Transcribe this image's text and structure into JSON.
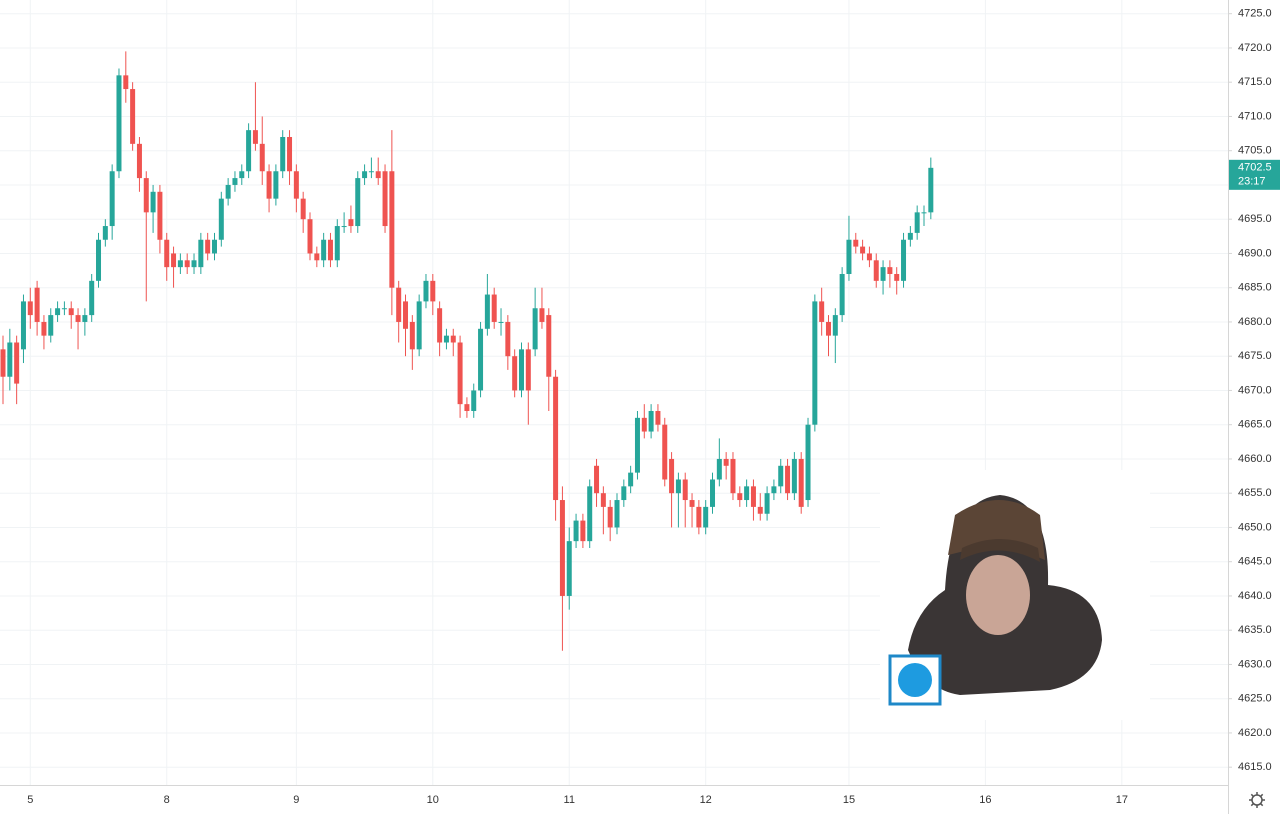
{
  "chart_data": {
    "type": "candlestick",
    "up_color": "#26a69a",
    "down_color": "#ef5350",
    "grid": true,
    "countdown": "23:17",
    "categories": [
      null,
      null,
      null,
      null,
      "5",
      null,
      null,
      null,
      null,
      null,
      null,
      null,
      null,
      null,
      null,
      null,
      null,
      null,
      null,
      null,
      null,
      null,
      null,
      null,
      "8",
      null,
      null,
      null,
      null,
      null,
      null,
      null,
      null,
      null,
      null,
      null,
      null,
      null,
      null,
      null,
      null,
      null,
      null,
      "9",
      null,
      null,
      null,
      null,
      null,
      null,
      null,
      null,
      null,
      null,
      null,
      null,
      null,
      null,
      null,
      null,
      null,
      null,
      null,
      "10",
      null,
      null,
      null,
      null,
      null,
      null,
      null,
      null,
      null,
      null,
      null,
      null,
      null,
      null,
      null,
      null,
      null,
      null,
      null,
      "11",
      null,
      null,
      null,
      null,
      null,
      null,
      null,
      null,
      null,
      null,
      null,
      null,
      null,
      null,
      null,
      null,
      null,
      null,
      null,
      "12",
      null,
      null,
      null,
      null,
      null,
      null,
      null,
      null,
      null,
      null,
      null,
      null,
      null,
      null,
      null,
      null,
      null,
      null,
      null,
      null,
      "15",
      null,
      null,
      null,
      null,
      null,
      null,
      null,
      null,
      null,
      null,
      null,
      null,
      null,
      null,
      null,
      null,
      null,
      null,
      null,
      "16",
      null,
      null,
      null,
      null,
      null,
      null,
      null,
      null,
      null,
      null,
      null,
      null,
      null,
      null,
      null,
      null,
      null,
      null,
      null,
      "17",
      null,
      null,
      null,
      null,
      null,
      null,
      null,
      null,
      null,
      null,
      null,
      null,
      null,
      null,
      null
    ],
    "open": [
      4676,
      4672,
      4677,
      4676,
      4683,
      4685,
      4680,
      4678,
      4681,
      4682,
      4682,
      4681,
      4680,
      4681,
      4686,
      4692,
      4694,
      4702,
      4716,
      4714,
      4706,
      4701,
      4696,
      4699,
      4692,
      4690,
      4688,
      4689,
      4688,
      4688,
      4692,
      4690,
      4692,
      4698,
      4700,
      4701,
      4702,
      4708,
      4706,
      4702,
      4698,
      4702,
      4707,
      4702,
      4698,
      4695,
      4690,
      4689,
      4692,
      4689,
      4694,
      4695,
      4694,
      4701,
      4702,
      4702,
      4702,
      4702,
      4685,
      4683,
      4680,
      4676,
      4683,
      4686,
      4682,
      4677,
      4678,
      4677,
      4668,
      4667,
      4670,
      4679,
      4684,
      4680,
      4680,
      4675,
      4670,
      4676,
      4676,
      4682,
      4681,
      4672,
      4654,
      4640,
      4648,
      4651,
      4648,
      4659,
      4655,
      4653,
      4650,
      4654,
      4656,
      4658,
      4666,
      4664,
      4667,
      4665,
      4660,
      4655,
      4657,
      4654,
      4653,
      4650,
      4653,
      4657,
      4660,
      4660,
      4655,
      4654,
      4656,
      4653,
      4652,
      4655,
      4656,
      4659,
      4655,
      4660,
      4654,
      4665,
      4683,
      4680,
      4678,
      4681,
      4687,
      4692,
      4691,
      4690,
      4689,
      4686,
      4688,
      4687,
      4686,
      4692,
      4693,
      4696,
      4696,
      null,
      null,
      null,
      null,
      null,
      null,
      null,
      null,
      null,
      null,
      null,
      null,
      null,
      null,
      null,
      null,
      null,
      null,
      null,
      null,
      null,
      null,
      null,
      null,
      null,
      null,
      null,
      null,
      null,
      null,
      null,
      null,
      null,
      null,
      null,
      null,
      null,
      null,
      null,
      null,
      null,
      null,
      null
    ],
    "high": [
      4678,
      4679,
      4678,
      4684,
      4685,
      4686,
      4681,
      4682,
      4683,
      4683,
      4683,
      4682,
      4682,
      4687,
      4693,
      4695,
      4703,
      4717,
      4719.5,
      4715,
      4707,
      4702,
      4700,
      4700,
      4693,
      4691,
      4690,
      4690,
      4690,
      4693,
      4693,
      4693,
      4699,
      4701,
      4702,
      4703,
      4709,
      4715,
      4710,
      4703,
      4703,
      4708,
      4708,
      4703,
      4699,
      4696,
      4691,
      4693,
      4693,
      4695,
      4696,
      4697,
      4702,
      4703,
      4704,
      4704,
      4703,
      4708,
      4686,
      4684,
      4681,
      4684,
      4687,
      4687,
      4683,
      4679,
      4679,
      4678,
      4669,
      4671,
      4680,
      4687,
      4685,
      4682,
      4681,
      4676,
      4677,
      4677,
      4685,
      4685,
      4682,
      4673,
      4656,
      4650,
      4652,
      4652,
      4657,
      4660,
      4656,
      4654,
      4655,
      4657,
      4659,
      4667,
      4668,
      4668,
      4668,
      4666,
      4661,
      4658,
      4658,
      4655,
      4654,
      4654,
      4658,
      4663,
      4661,
      4661,
      4656,
      4657,
      4657,
      4655,
      4656,
      4657,
      4660,
      4660,
      4661,
      4661,
      4666,
      4684,
      4685,
      4681,
      4682,
      4688,
      4695.5,
      4693,
      4692,
      4691,
      4690,
      4689,
      4689,
      4688,
      4693,
      4694,
      4697,
      4697,
      4704,
      null,
      null,
      null,
      null,
      null,
      null,
      null,
      null,
      null,
      null,
      null,
      null,
      null,
      null,
      null,
      null,
      null,
      null,
      null,
      null,
      null,
      null,
      null,
      null,
      null,
      null,
      null,
      null,
      null,
      null,
      null,
      null,
      null,
      null,
      null,
      null,
      null,
      null,
      null,
      null,
      null,
      null,
      null
    ],
    "low": [
      4668,
      4670,
      4668,
      4674,
      4679,
      4678,
      4676,
      4677,
      4680,
      4681,
      4679,
      4676,
      4678,
      4680,
      4685,
      4691,
      4692,
      4701,
      4712,
      4705,
      4699,
      4683,
      4693,
      4690,
      4686,
      4685,
      4687,
      4687,
      4687,
      4687,
      4689,
      4689,
      4691,
      4697,
      4699,
      4700,
      4701,
      4705,
      4700,
      4696,
      4697,
      4701,
      4700,
      4696,
      4693,
      4689,
      4688,
      4688,
      4688,
      4688,
      4693,
      4693,
      4693,
      4700,
      4701,
      4700,
      4693,
      4681,
      4677,
      4675,
      4673,
      4675,
      4682,
      4681,
      4675,
      4676,
      4675,
      4666,
      4666,
      4666,
      4669,
      4678,
      4679,
      4678,
      4673,
      4669,
      4669,
      4665,
      4675,
      4679,
      4667,
      4651,
      4632,
      4638,
      4647,
      4647,
      4647,
      4653,
      4649,
      4648,
      4649,
      4653,
      4655,
      4657,
      4663,
      4663,
      4664,
      4656,
      4650,
      4650,
      4650,
      4650,
      4649,
      4649,
      4652,
      4656,
      4657,
      4654,
      4653,
      4653,
      4651,
      4651,
      4651,
      4654,
      4655,
      4654,
      4654,
      4652,
      4653,
      4664,
      4678,
      4675,
      4674,
      4680,
      4686,
      4690,
      4689,
      4688,
      4685,
      4684,
      4685,
      4684,
      4685,
      4691,
      4692,
      4694,
      4695,
      null,
      null,
      null,
      null,
      null,
      null,
      null,
      null,
      null,
      null,
      null,
      null,
      null,
      null,
      null,
      null,
      null,
      null,
      null,
      null,
      null,
      null,
      null,
      null,
      null,
      null,
      null,
      null,
      null,
      null,
      null,
      null,
      null,
      null,
      null,
      null,
      null,
      null,
      null,
      null,
      null,
      null,
      null
    ],
    "close": [
      4672,
      4677,
      4671,
      4683,
      4681,
      4680,
      4678,
      4681,
      4682,
      4682,
      4681,
      4680,
      4681,
      4686,
      4692,
      4694,
      4702,
      4716,
      4714,
      4706,
      4701,
      4696,
      4699,
      4692,
      4688,
      4688,
      4689,
      4688,
      4689,
      4692,
      4690,
      4692,
      4698,
      4700,
      4701,
      4702,
      4708,
      4706,
      4702,
      4698,
      4702,
      4707,
      4702,
      4698,
      4695,
      4690,
      4689,
      4692,
      4689,
      4694,
      4694,
      4694,
      4701,
      4702,
      4702,
      4701,
      4694,
      4685,
      4680,
      4679,
      4676,
      4683,
      4686,
      4683,
      4677,
      4678,
      4677,
      4668,
      4667,
      4670,
      4679,
      4684,
      4680,
      4680,
      4675,
      4670,
      4676,
      4670,
      4682,
      4680,
      4672,
      4654,
      4640,
      4648,
      4651,
      4648,
      4656,
      4655,
      4653,
      4650,
      4654,
      4656,
      4658,
      4666,
      4664,
      4667,
      4665,
      4657,
      4655,
      4657,
      4654,
      4653,
      4650,
      4653,
      4657,
      4660,
      4659,
      4655,
      4654,
      4656,
      4653,
      4652,
      4655,
      4656,
      4659,
      4655,
      4660,
      4653,
      4665,
      4683,
      4680,
      4678,
      4681,
      4687,
      4692,
      4691,
      4690,
      4689,
      4686,
      4688,
      4687,
      4686,
      4692,
      4693,
      4696,
      4696,
      4702.5,
      null,
      null,
      null,
      null,
      null,
      null,
      null,
      null,
      null,
      null,
      null,
      null,
      null,
      null,
      null,
      null,
      null,
      null,
      null,
      null,
      null,
      null,
      null,
      null,
      null,
      null,
      null,
      null,
      null,
      null,
      null,
      null,
      null,
      null,
      null,
      null,
      null,
      null,
      null,
      null,
      null,
      null,
      null
    ],
    "ylim": [
      4612.4,
      4727.0
    ],
    "yticks": [
      {
        "value": 4725,
        "label": "4725.0"
      },
      {
        "value": 4720,
        "label": "4720.0"
      },
      {
        "value": 4715,
        "label": "4715.0"
      },
      {
        "value": 4710,
        "label": "4710.0"
      },
      {
        "value": 4705,
        "label": "4705.0"
      },
      {
        "value": 4700,
        "label": "4700.0"
      },
      {
        "value": 4695,
        "label": "4695.0"
      },
      {
        "value": 4690,
        "label": "4690.0"
      },
      {
        "value": 4685,
        "label": "4685.0"
      },
      {
        "value": 4680,
        "label": "4680.0"
      },
      {
        "value": 4675,
        "label": "4675.0"
      },
      {
        "value": 4670,
        "label": "4670.0"
      },
      {
        "value": 4665,
        "label": "4665.0"
      },
      {
        "value": 4660,
        "label": "4660.0"
      },
      {
        "value": 4655,
        "label": "4655.0"
      },
      {
        "value": 4650,
        "label": "4650.0"
      },
      {
        "value": 4645,
        "label": "4645.0"
      },
      {
        "value": 4640,
        "label": "4640.0"
      },
      {
        "value": 4635,
        "label": "4635.0"
      },
      {
        "value": 4630,
        "label": "4630.0"
      },
      {
        "value": 4625,
        "label": "4625.0"
      },
      {
        "value": 4620,
        "label": "4620.0"
      },
      {
        "value": 4615,
        "label": "4615.0"
      }
    ]
  }
}
